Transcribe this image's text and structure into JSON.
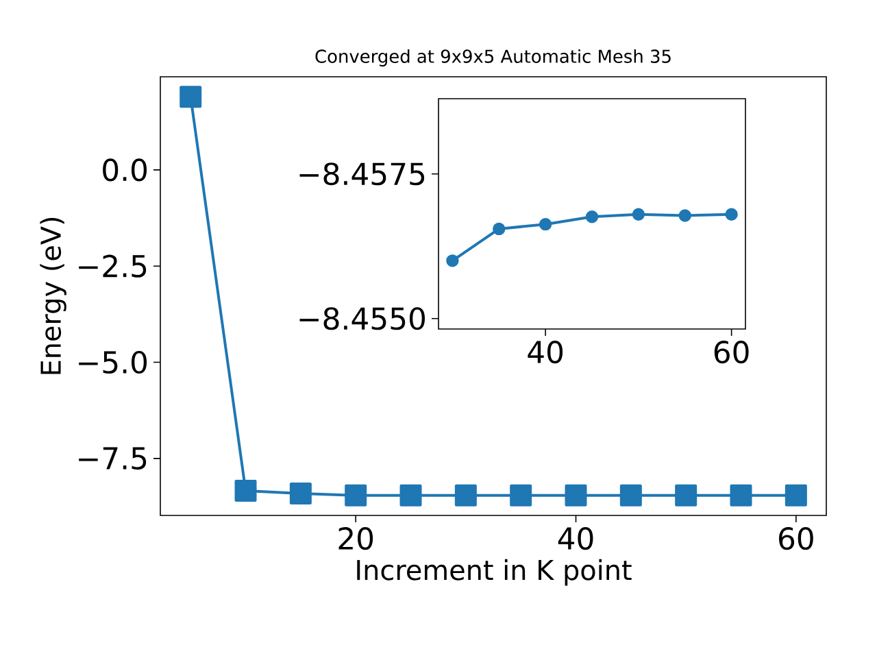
{
  "chart_data": [
    {
      "type": "line",
      "title": "Converged at 9x9x5 Automatic Mesh 35",
      "xlabel": "Increment in K point",
      "ylabel": "Energy (eV)",
      "x": [
        5,
        10,
        15,
        20,
        25,
        30,
        35,
        40,
        45,
        50,
        55,
        60
      ],
      "series": [
        {
          "color": "#1f77b4",
          "values": [
            1.9,
            -8.34,
            -8.41,
            -8.46,
            -8.46,
            -8.46,
            -8.46,
            -8.46,
            -8.46,
            -8.46,
            -8.46,
            -8.46
          ]
        }
      ],
      "xlim": [
        2.25,
        62.75
      ],
      "ylim": [
        -8.98,
        2.42
      ],
      "xticks": [
        20,
        40,
        60
      ],
      "yticks": [
        {
          "value": -7.5,
          "label": "−7.5"
        },
        {
          "value": -5,
          "label": "−5.0"
        },
        {
          "value": -2.5,
          "label": "−2.5"
        },
        {
          "value": 0,
          "label": "0.0"
        }
      ],
      "marker": "square",
      "line_style": "solid",
      "grid": false
    },
    {
      "type": "line",
      "x": [
        30,
        35,
        40,
        45,
        50,
        55,
        60
      ],
      "series": [
        {
          "color": "#1f77b4",
          "values": [
            -8.456,
            -8.45655,
            -8.45663,
            -8.45676,
            -8.4568,
            -8.45678,
            -8.4568
          ]
        }
      ],
      "xlim": [
        28.5,
        61.5
      ],
      "ylim": [
        -8.45482,
        -8.4588
      ],
      "xticks": [
        40,
        60
      ],
      "yticks": [
        {
          "value": -8.4575,
          "label": "−8.4575"
        },
        {
          "value": -8.455,
          "label": "−8.4550"
        }
      ],
      "marker": "circle",
      "line_style": "solid",
      "grid": false
    }
  ]
}
